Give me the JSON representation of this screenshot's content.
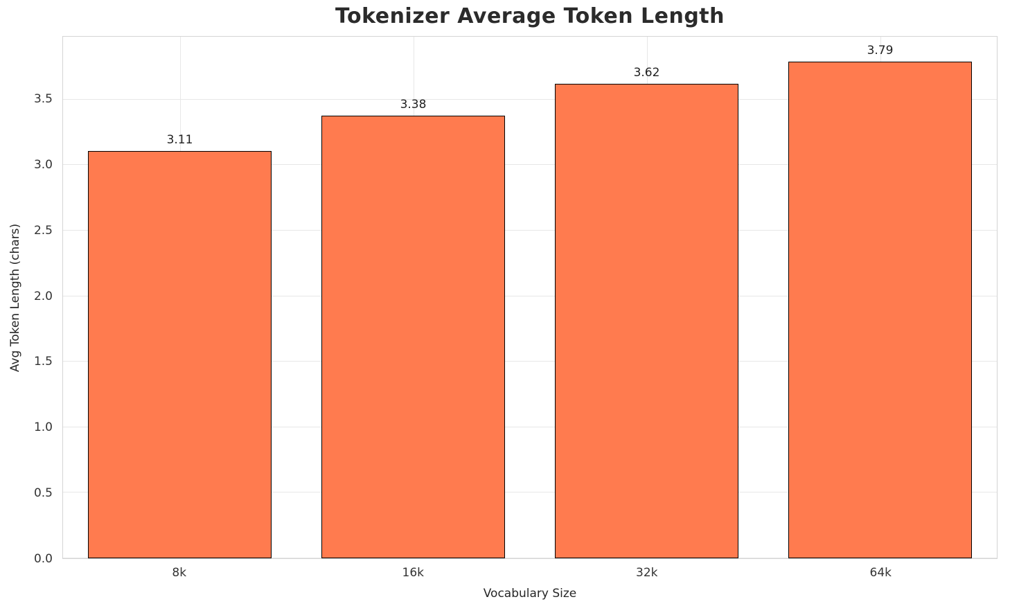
{
  "chart_data": {
    "type": "bar",
    "title": "Tokenizer Average Token Length",
    "xlabel": "Vocabulary Size",
    "ylabel": "Avg Token Length (chars)",
    "categories": [
      "8k",
      "16k",
      "32k",
      "64k"
    ],
    "values": [
      3.11,
      3.38,
      3.62,
      3.79
    ],
    "value_labels": [
      "3.11",
      "3.38",
      "3.62",
      "3.79"
    ],
    "ylim": [
      0,
      3.98
    ],
    "yticks": [
      0.0,
      0.5,
      1.0,
      1.5,
      2.0,
      2.5,
      3.0,
      3.5
    ],
    "grid": true,
    "legend": "none",
    "bar_color": "#FF7B4F",
    "bar_edge_color": "#000000",
    "bar_width_ratio": 0.785
  }
}
